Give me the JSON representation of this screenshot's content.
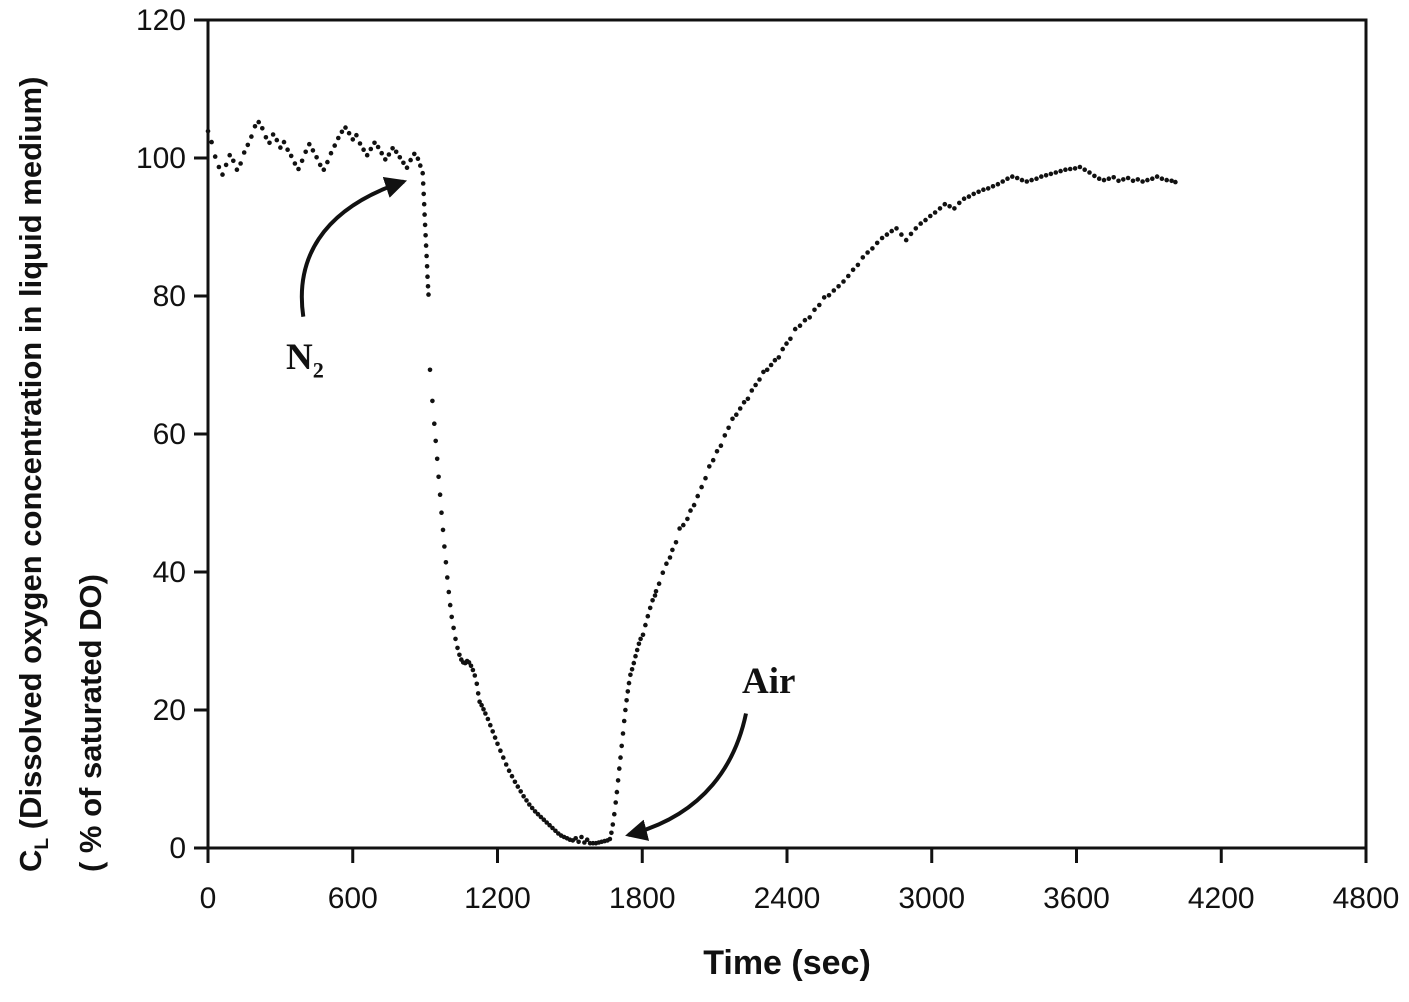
{
  "figure": {
    "background": "#ffffff",
    "ink_color": "#111111"
  },
  "chart_data": {
    "type": "scatter",
    "title": "",
    "xlabel": "Time (sec)",
    "ylabel": {
      "symbol": "C",
      "symbol_subscript": "L",
      "line1_rest": " (Dissolved oxygen concentration in liquid medium)",
      "line2": "( % of saturated DO)"
    },
    "xlim": [
      0,
      4800
    ],
    "ylim": [
      0,
      120
    ],
    "x_ticks": [
      0,
      600,
      1200,
      1800,
      2400,
      3000,
      3600,
      4200,
      4800
    ],
    "y_ticks": [
      0,
      20,
      40,
      60,
      80,
      100,
      120
    ],
    "grid": false,
    "legend": "none",
    "marker": {
      "shape": "dot",
      "color": "#111111",
      "radius_px": 2.3
    },
    "annotations": [
      {
        "text": "N",
        "subscript": "2",
        "label_pos": {
          "t": 325,
          "v": 74.2
        },
        "arrow_from": {
          "t": 395,
          "v": 77.0
        },
        "arrow_to": {
          "t": 812,
          "v": 96.6
        }
      },
      {
        "text": "Air",
        "subscript": "",
        "label_pos": {
          "t": 2215,
          "v": 27.2
        },
        "arrow_from": {
          "t": 2230,
          "v": 19.5
        },
        "arrow_to": {
          "t": 1742,
          "v": 1.9
        }
      }
    ],
    "series": [
      {
        "name": "Dissolved oxygen (% of saturated DO)",
        "points": [
          [
            0,
            103.9
          ],
          [
            15,
            102.3
          ],
          [
            30,
            100.2
          ],
          [
            45,
            98.7
          ],
          [
            60,
            97.6
          ],
          [
            75,
            99.0
          ],
          [
            90,
            100.4
          ],
          [
            105,
            99.6
          ],
          [
            120,
            98.3
          ],
          [
            135,
            99.2
          ],
          [
            150,
            100.8
          ],
          [
            165,
            101.9
          ],
          [
            180,
            103.1
          ],
          [
            195,
            104.6
          ],
          [
            210,
            105.2
          ],
          [
            225,
            104.3
          ],
          [
            240,
            103.0
          ],
          [
            255,
            102.2
          ],
          [
            270,
            103.4
          ],
          [
            285,
            102.6
          ],
          [
            300,
            101.5
          ],
          [
            315,
            102.3
          ],
          [
            330,
            101.2
          ],
          [
            345,
            100.3
          ],
          [
            360,
            99.2
          ],
          [
            375,
            98.4
          ],
          [
            390,
            99.6
          ],
          [
            405,
            100.9
          ],
          [
            420,
            102.0
          ],
          [
            435,
            101.1
          ],
          [
            450,
            100.1
          ],
          [
            465,
            99.0
          ],
          [
            480,
            98.3
          ],
          [
            495,
            99.4
          ],
          [
            510,
            100.7
          ],
          [
            525,
            101.8
          ],
          [
            540,
            102.9
          ],
          [
            555,
            103.8
          ],
          [
            570,
            104.4
          ],
          [
            585,
            103.6
          ],
          [
            600,
            102.7
          ],
          [
            615,
            103.3
          ],
          [
            630,
            102.1
          ],
          [
            645,
            101.2
          ],
          [
            660,
            100.4
          ],
          [
            675,
            101.3
          ],
          [
            690,
            102.2
          ],
          [
            705,
            101.6
          ],
          [
            720,
            100.7
          ],
          [
            735,
            99.8
          ],
          [
            750,
            100.5
          ],
          [
            765,
            101.4
          ],
          [
            780,
            100.9
          ],
          [
            795,
            100.1
          ],
          [
            810,
            99.3
          ],
          [
            825,
            98.6
          ],
          [
            840,
            99.7
          ],
          [
            855,
            100.6
          ],
          [
            870,
            99.9
          ],
          [
            880,
            98.9
          ],
          [
            890,
            97.8
          ],
          [
            892,
            96.3
          ],
          [
            894,
            94.8
          ],
          [
            896,
            93.3
          ],
          [
            898,
            91.8
          ],
          [
            900,
            90.3
          ],
          [
            902,
            88.8
          ],
          [
            904,
            87.3
          ],
          [
            906,
            85.8
          ],
          [
            908,
            84.3
          ],
          [
            910,
            82.8
          ],
          [
            912,
            81.4
          ],
          [
            914,
            80.2
          ],
          [
            920,
            69.3
          ],
          [
            930,
            64.8
          ],
          [
            938,
            61.5
          ],
          [
            944,
            59.0
          ],
          [
            950,
            56.4
          ],
          [
            956,
            53.8
          ],
          [
            962,
            51.2
          ],
          [
            968,
            48.6
          ],
          [
            974,
            46.1
          ],
          [
            980,
            43.7
          ],
          [
            986,
            41.4
          ],
          [
            992,
            39.2
          ],
          [
            998,
            37.1
          ],
          [
            1004,
            35.2
          ],
          [
            1010,
            33.5
          ],
          [
            1018,
            31.9
          ],
          [
            1026,
            30.3
          ],
          [
            1034,
            29.0
          ],
          [
            1042,
            28.0
          ],
          [
            1050,
            27.3
          ],
          [
            1058,
            26.9
          ],
          [
            1066,
            26.8
          ],
          [
            1074,
            27.1
          ],
          [
            1082,
            26.9
          ],
          [
            1090,
            26.4
          ],
          [
            1098,
            25.8
          ],
          [
            1106,
            25.0
          ],
          [
            1114,
            23.8
          ],
          [
            1120,
            22.4
          ],
          [
            1126,
            21.2
          ],
          [
            1134,
            20.7
          ],
          [
            1142,
            20.1
          ],
          [
            1150,
            19.5
          ],
          [
            1160,
            18.7
          ],
          [
            1170,
            17.8
          ],
          [
            1180,
            16.9
          ],
          [
            1190,
            16.0
          ],
          [
            1200,
            15.1
          ],
          [
            1212,
            14.1
          ],
          [
            1224,
            13.1
          ],
          [
            1236,
            12.1
          ],
          [
            1248,
            11.2
          ],
          [
            1260,
            10.4
          ],
          [
            1272,
            9.6
          ],
          [
            1284,
            8.9
          ],
          [
            1296,
            8.2
          ],
          [
            1308,
            7.5
          ],
          [
            1320,
            6.9
          ],
          [
            1332,
            6.3
          ],
          [
            1344,
            5.8
          ],
          [
            1356,
            5.3
          ],
          [
            1368,
            4.9
          ],
          [
            1380,
            4.5
          ],
          [
            1392,
            4.1
          ],
          [
            1404,
            3.7
          ],
          [
            1416,
            3.3
          ],
          [
            1428,
            2.9
          ],
          [
            1440,
            2.5
          ],
          [
            1452,
            2.1
          ],
          [
            1464,
            1.8
          ],
          [
            1476,
            1.6
          ],
          [
            1488,
            1.4
          ],
          [
            1500,
            1.2
          ],
          [
            1512,
            1.1
          ],
          [
            1524,
            1.4
          ],
          [
            1536,
            0.9
          ],
          [
            1548,
            1.6
          ],
          [
            1560,
            0.8
          ],
          [
            1572,
            1.2
          ],
          [
            1584,
            0.7
          ],
          [
            1596,
            0.7
          ],
          [
            1608,
            0.7
          ],
          [
            1620,
            0.8
          ],
          [
            1632,
            0.9
          ],
          [
            1644,
            1.0
          ],
          [
            1656,
            1.1
          ],
          [
            1666,
            1.3
          ],
          [
            1672,
            2.2
          ],
          [
            1678,
            3.4
          ],
          [
            1684,
            4.9
          ],
          [
            1690,
            6.6
          ],
          [
            1695,
            8.1
          ],
          [
            1700,
            9.8
          ],
          [
            1705,
            11.5
          ],
          [
            1710,
            13.1
          ],
          [
            1715,
            14.8
          ],
          [
            1720,
            16.6
          ],
          [
            1725,
            18.4
          ],
          [
            1730,
            20.0
          ],
          [
            1735,
            21.4
          ],
          [
            1740,
            22.7
          ],
          [
            1745,
            23.9
          ],
          [
            1751,
            25.1
          ],
          [
            1758,
            25.9
          ],
          [
            1765,
            26.8
          ],
          [
            1772,
            27.8
          ],
          [
            1779,
            28.7
          ],
          [
            1786,
            29.6
          ],
          [
            1793,
            30.3
          ],
          [
            1803,
            30.9
          ],
          [
            1813,
            32.3
          ],
          [
            1823,
            33.6
          ],
          [
            1833,
            34.8
          ],
          [
            1843,
            35.9
          ],
          [
            1853,
            36.6
          ],
          [
            1857,
            37.2
          ],
          [
            1870,
            38.3
          ],
          [
            1885,
            39.9
          ],
          [
            1900,
            41.2
          ],
          [
            1915,
            42.1
          ],
          [
            1925,
            43.2
          ],
          [
            1940,
            44.3
          ],
          [
            1955,
            46.3
          ],
          [
            1970,
            46.8
          ],
          [
            1987,
            47.7
          ],
          [
            2000,
            48.9
          ],
          [
            2015,
            49.7
          ],
          [
            2030,
            51.0
          ],
          [
            2046,
            52.3
          ],
          [
            2062,
            53.6
          ],
          [
            2078,
            55.3
          ],
          [
            2094,
            56.2
          ],
          [
            2110,
            57.5
          ],
          [
            2126,
            58.3
          ],
          [
            2142,
            59.8
          ],
          [
            2158,
            60.9
          ],
          [
            2174,
            62.2
          ],
          [
            2190,
            62.8
          ],
          [
            2206,
            63.7
          ],
          [
            2222,
            64.6
          ],
          [
            2238,
            65.1
          ],
          [
            2254,
            66.3
          ],
          [
            2270,
            67.1
          ],
          [
            2286,
            67.9
          ],
          [
            2302,
            69.0
          ],
          [
            2318,
            69.3
          ],
          [
            2334,
            70.0
          ],
          [
            2350,
            70.7
          ],
          [
            2366,
            71.1
          ],
          [
            2382,
            72.3
          ],
          [
            2398,
            73.1
          ],
          [
            2414,
            73.8
          ],
          [
            2434,
            75.2
          ],
          [
            2454,
            75.7
          ],
          [
            2474,
            76.5
          ],
          [
            2494,
            76.9
          ],
          [
            2514,
            78.0
          ],
          [
            2534,
            78.7
          ],
          [
            2554,
            79.8
          ],
          [
            2574,
            80.1
          ],
          [
            2594,
            80.8
          ],
          [
            2614,
            81.4
          ],
          [
            2634,
            82.1
          ],
          [
            2654,
            82.9
          ],
          [
            2674,
            83.8
          ],
          [
            2694,
            84.5
          ],
          [
            2714,
            85.6
          ],
          [
            2734,
            86.3
          ],
          [
            2754,
            86.9
          ],
          [
            2774,
            87.7
          ],
          [
            2794,
            88.4
          ],
          [
            2814,
            88.9
          ],
          [
            2834,
            89.4
          ],
          [
            2854,
            89.8
          ],
          [
            2874,
            88.9
          ],
          [
            2894,
            88.1
          ],
          [
            2914,
            89.0
          ],
          [
            2934,
            89.8
          ],
          [
            2954,
            90.5
          ],
          [
            2974,
            91.0
          ],
          [
            2994,
            91.6
          ],
          [
            3014,
            92.1
          ],
          [
            3034,
            92.7
          ],
          [
            3054,
            93.3
          ],
          [
            3074,
            93.0
          ],
          [
            3094,
            92.7
          ],
          [
            3114,
            93.5
          ],
          [
            3134,
            94.1
          ],
          [
            3154,
            94.4
          ],
          [
            3174,
            94.8
          ],
          [
            3194,
            95.1
          ],
          [
            3214,
            95.4
          ],
          [
            3234,
            95.6
          ],
          [
            3254,
            95.9
          ],
          [
            3274,
            96.2
          ],
          [
            3294,
            96.6
          ],
          [
            3314,
            97.0
          ],
          [
            3334,
            97.3
          ],
          [
            3354,
            97.1
          ],
          [
            3374,
            96.8
          ],
          [
            3394,
            96.6
          ],
          [
            3414,
            96.8
          ],
          [
            3434,
            97.0
          ],
          [
            3454,
            97.3
          ],
          [
            3474,
            97.5
          ],
          [
            3494,
            97.7
          ],
          [
            3514,
            97.9
          ],
          [
            3534,
            98.1
          ],
          [
            3554,
            98.3
          ],
          [
            3574,
            98.4
          ],
          [
            3594,
            98.5
          ],
          [
            3614,
            98.7
          ],
          [
            3634,
            98.3
          ],
          [
            3654,
            97.9
          ],
          [
            3674,
            97.4
          ],
          [
            3694,
            97.0
          ],
          [
            3714,
            96.8
          ],
          [
            3734,
            97.0
          ],
          [
            3754,
            97.2
          ],
          [
            3774,
            96.7
          ],
          [
            3794,
            96.9
          ],
          [
            3814,
            97.1
          ],
          [
            3834,
            96.7
          ],
          [
            3854,
            96.9
          ],
          [
            3874,
            96.6
          ],
          [
            3894,
            96.8
          ],
          [
            3914,
            97.0
          ],
          [
            3934,
            97.3
          ],
          [
            3954,
            97.0
          ],
          [
            3974,
            96.8
          ],
          [
            3994,
            96.7
          ],
          [
            4010,
            96.5
          ]
        ]
      }
    ]
  }
}
